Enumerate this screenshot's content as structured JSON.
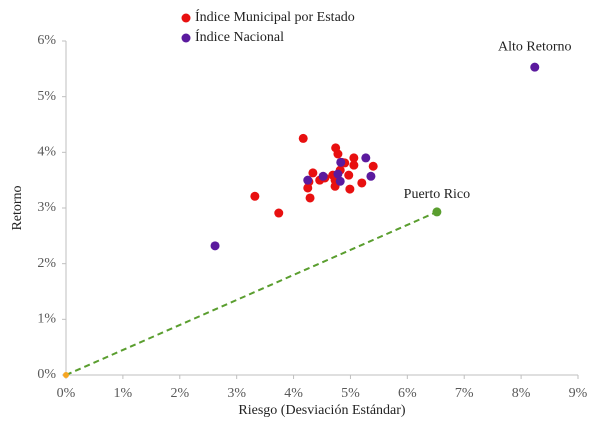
{
  "chart_data": {
    "type": "scatter",
    "x_label": "Riesgo (Desviación Estándar)",
    "y_label": "Retorno",
    "xlim": [
      0,
      9
    ],
    "ylim": [
      0,
      6
    ],
    "xticks": [
      {
        "value": 0,
        "label": "0%"
      },
      {
        "value": 1,
        "label": "1%"
      },
      {
        "value": 2,
        "label": "2%"
      },
      {
        "value": 3,
        "label": "3%"
      },
      {
        "value": 4,
        "label": "4%"
      },
      {
        "value": 5,
        "label": "5%"
      },
      {
        "value": 6,
        "label": "6%"
      },
      {
        "value": 7,
        "label": "7%"
      },
      {
        "value": 8,
        "label": "8%"
      },
      {
        "value": 9,
        "label": "9%"
      }
    ],
    "yticks": [
      {
        "value": 0,
        "label": "0%"
      },
      {
        "value": 1,
        "label": "1%"
      },
      {
        "value": 2,
        "label": "2%"
      },
      {
        "value": 3,
        "label": "3%"
      },
      {
        "value": 4,
        "label": "4%"
      },
      {
        "value": 5,
        "label": "5%"
      },
      {
        "value": 6,
        "label": "6%"
      }
    ],
    "grid": false,
    "legend_position": "top",
    "series": [
      {
        "name": "Índice Municipal por Estado",
        "color": "#e81010",
        "x": [
          4.17,
          3.32,
          3.74,
          4.25,
          4.27,
          4.29,
          4.34,
          4.46,
          4.55,
          4.69,
          4.73,
          4.78,
          4.74,
          4.73,
          4.82,
          4.85,
          4.9,
          4.97,
          4.99,
          5.06,
          5.06,
          5.2,
          5.4
        ],
        "values": [
          4.25,
          3.21,
          2.91,
          3.36,
          3.47,
          3.18,
          3.63,
          3.5,
          3.54,
          3.59,
          3.5,
          3.97,
          4.08,
          3.39,
          3.68,
          3.82,
          3.81,
          3.59,
          3.34,
          3.9,
          3.77,
          3.45,
          3.75
        ]
      },
      {
        "name": "Índice Nacional",
        "color": "#5b1a9e",
        "x": [
          2.62,
          4.25,
          4.52,
          4.78,
          4.83,
          4.82,
          5.27,
          5.36,
          8.24
        ],
        "values": [
          2.32,
          3.5,
          3.57,
          3.61,
          3.82,
          3.48,
          3.9,
          3.57,
          5.53
        ]
      }
    ],
    "highlight_points": [
      {
        "label": "Puerto Rico",
        "x": 6.52,
        "y": 2.93,
        "color": "#5a9e2f"
      },
      {
        "x": 0,
        "y": 0,
        "color": "#f5a623"
      }
    ],
    "annotations": [
      {
        "text": "Alto Retorno",
        "x": 8.24,
        "y": 5.53
      }
    ]
  }
}
